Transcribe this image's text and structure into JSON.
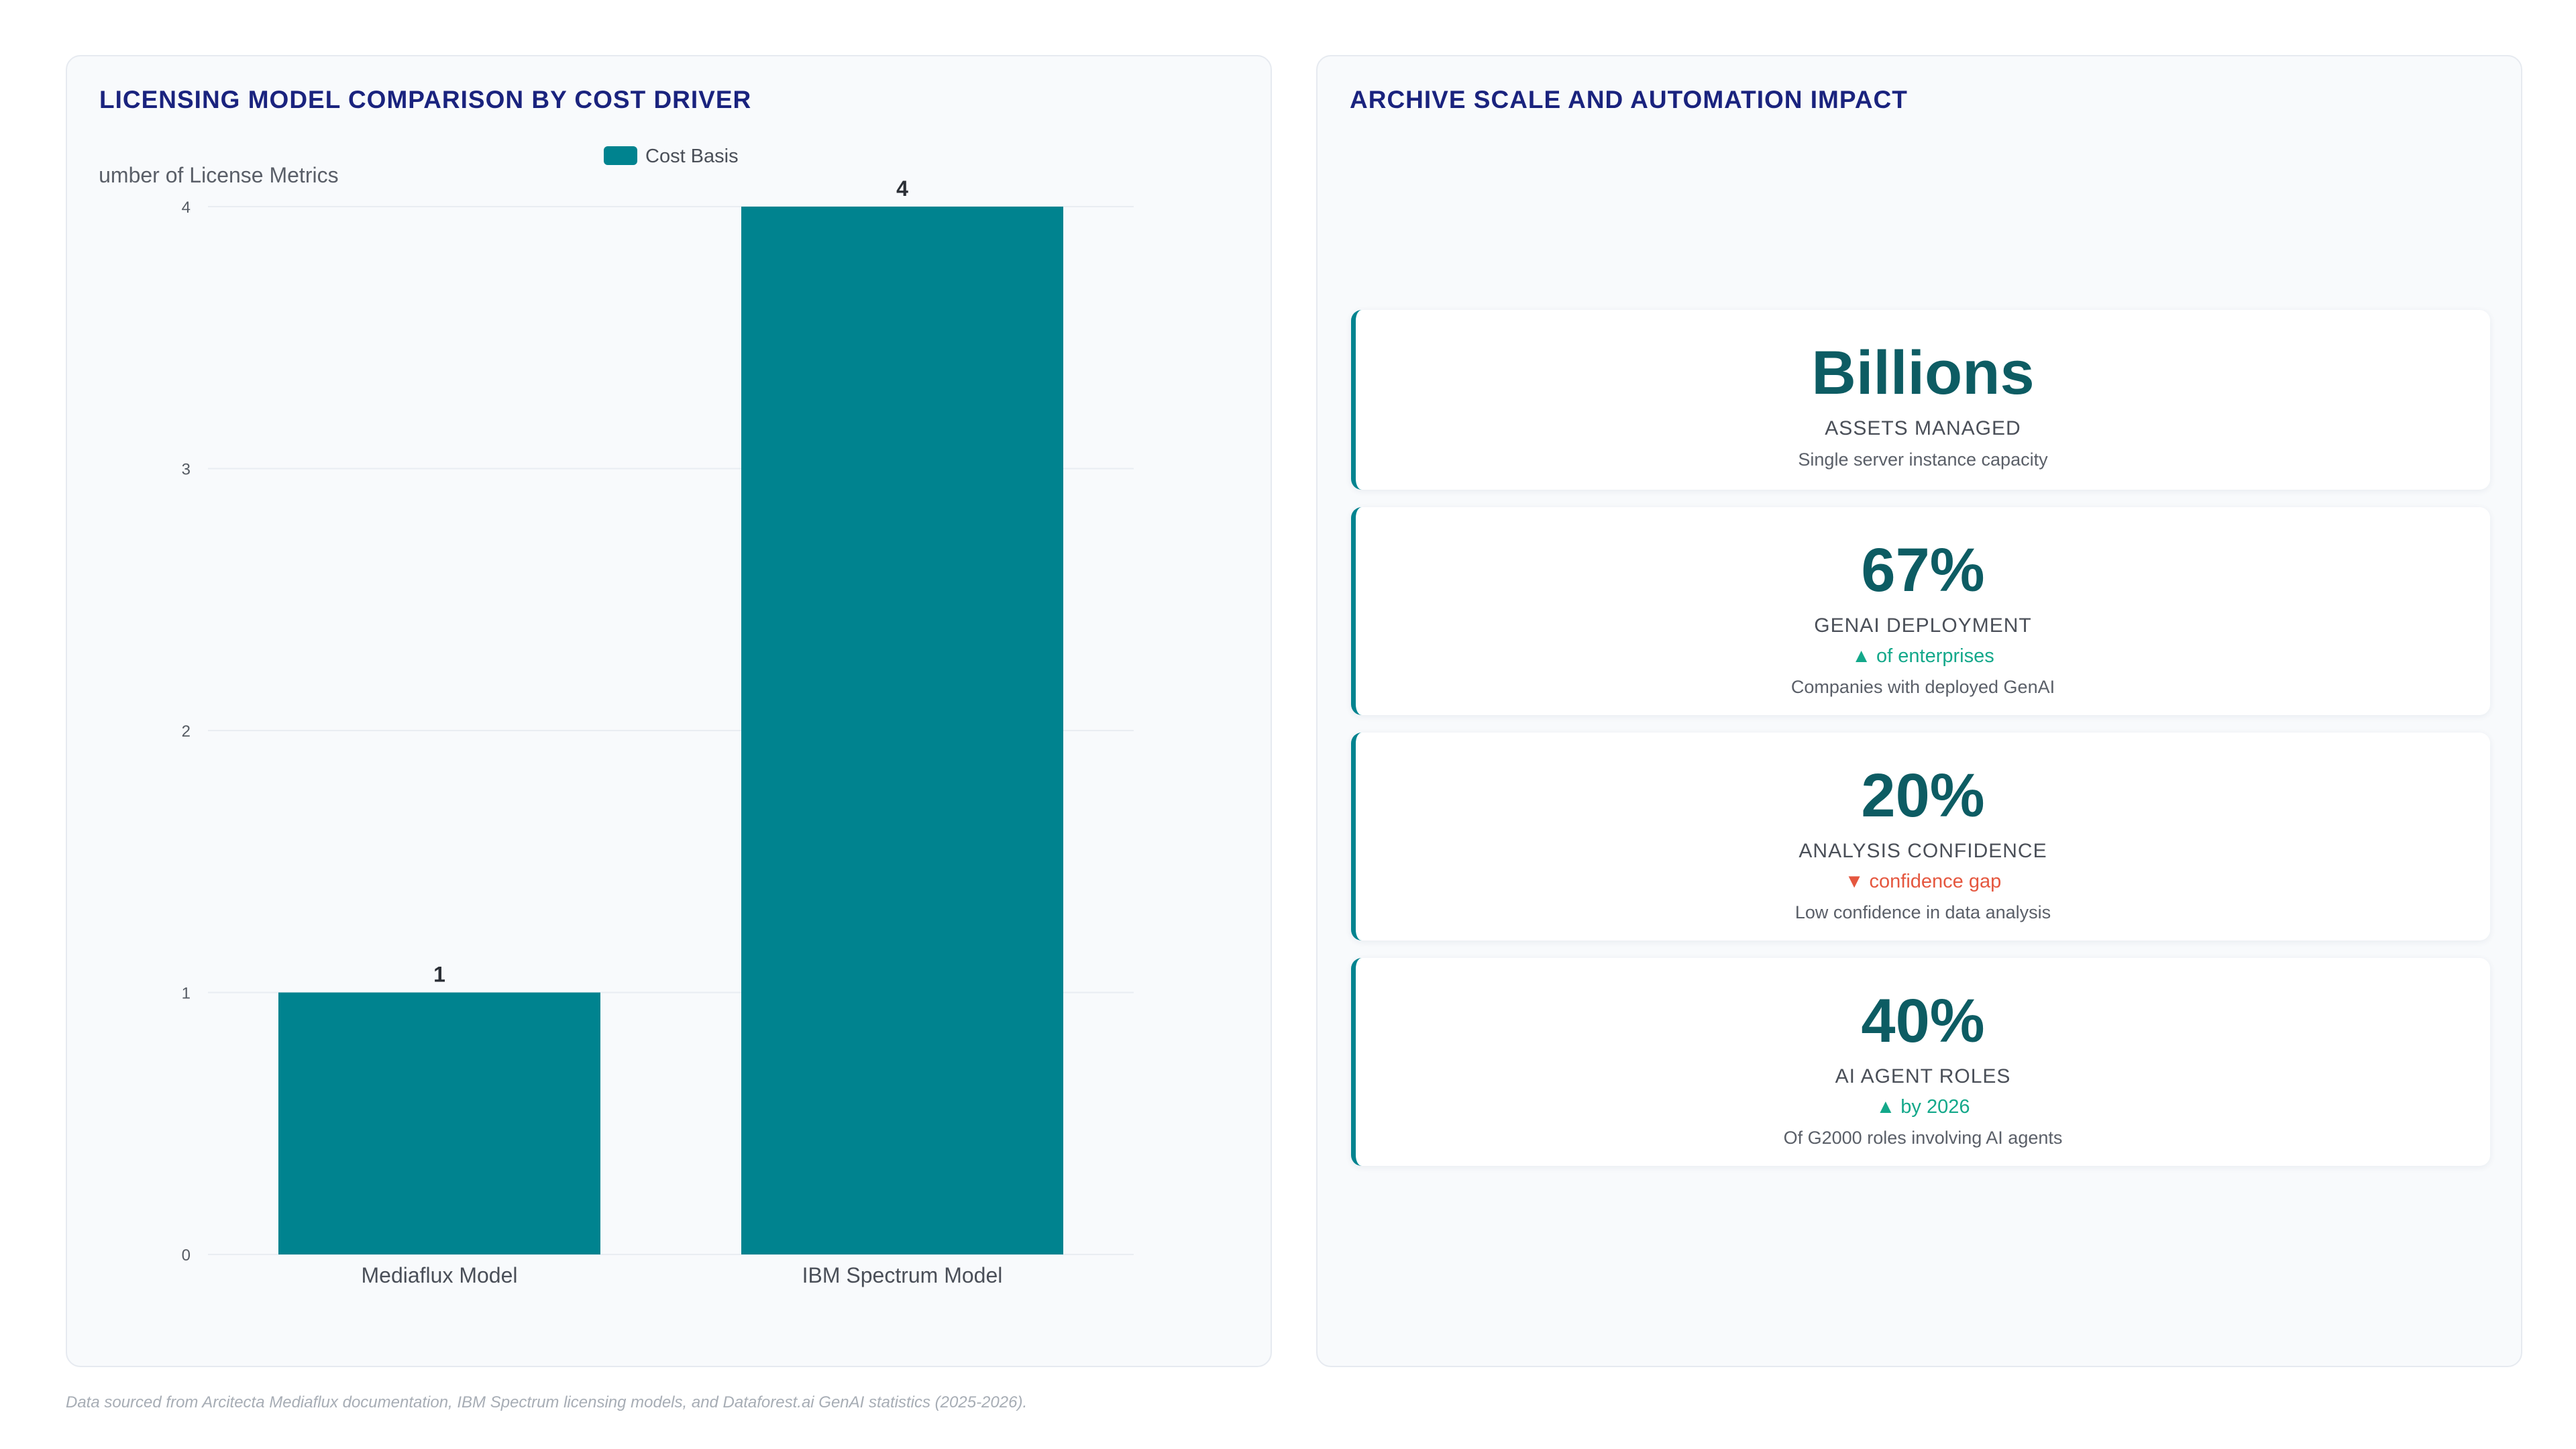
{
  "left_panel": {
    "title": "LICENSING MODEL COMPARISON BY COST DRIVER"
  },
  "right_panel": {
    "title": "ARCHIVE SCALE AND AUTOMATION IMPACT",
    "kpis": [
      {
        "value": "Billions",
        "label": "ASSETS MANAGED",
        "trend": "",
        "trend_direction": "",
        "description": "Single server instance capacity"
      },
      {
        "value": "67%",
        "label": "GENAI DEPLOYMENT",
        "trend": "▲ of enterprises",
        "trend_direction": "up",
        "description": "Companies with deployed GenAI"
      },
      {
        "value": "20%",
        "label": "ANALYSIS CONFIDENCE",
        "trend": "▼ confidence gap",
        "trend_direction": "down",
        "description": "Low confidence in data analysis"
      },
      {
        "value": "40%",
        "label": "AI AGENT ROLES",
        "trend": "▲ by 2026",
        "trend_direction": "up",
        "description": "Of G2000 roles involving AI agents"
      }
    ]
  },
  "footnote": "Data sourced from Arcitecta Mediaflux documentation, IBM Spectrum licensing models, and Dataforest.ai GenAI statistics (2025-2026).",
  "colors": {
    "bar": "#00838f",
    "title": "#1a237e",
    "kpi_value": "#0d5c63",
    "trend_up": "#13a88a",
    "trend_down": "#e5573f"
  },
  "chart_data": {
    "type": "bar",
    "title": "",
    "categories": [
      "Mediaflux Model",
      "IBM Spectrum Model"
    ],
    "series": [
      {
        "name": "Cost Basis",
        "values": [
          1,
          4
        ]
      }
    ],
    "data_labels": [
      "1",
      "4"
    ],
    "ylabel": "Number of License Metrics",
    "xlabel": "",
    "ylim": [
      0,
      4
    ],
    "yticks": [
      0,
      1,
      2,
      3,
      4
    ],
    "grid": true,
    "legend_position": "top-center"
  }
}
